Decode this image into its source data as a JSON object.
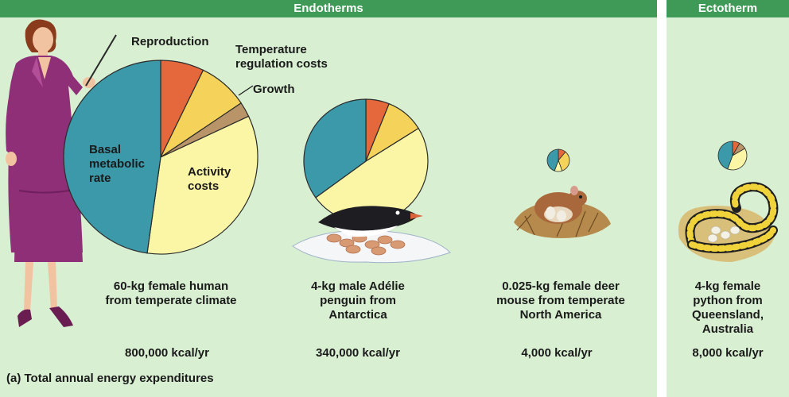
{
  "headers": {
    "endotherms": "Endotherms",
    "ectotherm": "Ectotherm"
  },
  "colors": {
    "panel_bg": "#d8efd2",
    "header_bg": "#3f9a57",
    "basal": "#3b99aa",
    "reproduction": "#e5683d",
    "temperature": "#f5d25a",
    "growth": "#b99468",
    "activity": "#fbf6a6"
  },
  "pie_labels": {
    "reproduction": "Reproduction",
    "temperature": [
      "Temperature",
      "regulation costs"
    ],
    "growth": "Growth",
    "basal": [
      "Basal",
      "metabolic",
      "rate"
    ],
    "activity": [
      "Activity",
      "costs"
    ]
  },
  "organisms": [
    {
      "id": "human",
      "caption": [
        "60-kg female human",
        "from temperate climate"
      ],
      "energy": "800,000 kcal/yr"
    },
    {
      "id": "penguin",
      "caption": [
        "4-kg male Adélie",
        "penguin from",
        "Antarctica"
      ],
      "energy": "340,000 kcal/yr"
    },
    {
      "id": "mouse",
      "caption": [
        "0.025-kg female deer",
        "mouse from temperate",
        "North America"
      ],
      "energy": "4,000 kcal/yr"
    },
    {
      "id": "python",
      "caption": [
        "4-kg female",
        "python from",
        "Queensland,",
        "Australia"
      ],
      "energy": "8,000 kcal/yr"
    }
  ],
  "figure_caption": "(a) Total annual energy expenditures"
}
